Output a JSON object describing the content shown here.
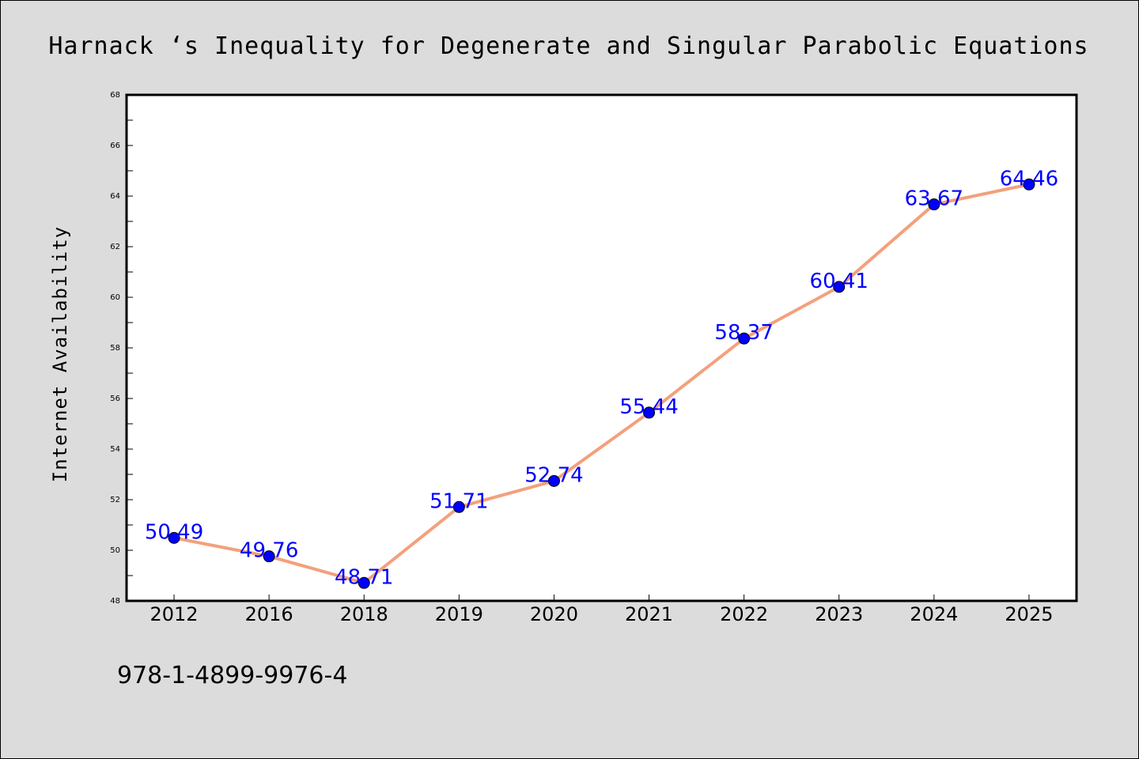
{
  "chart_data": {
    "type": "line",
    "title": "Harnack ‘s Inequality for Degenerate and Singular Parabolic Equations",
    "xlabel": "",
    "ylabel": "Internet Availability",
    "categories": [
      "2012",
      "2016",
      "2018",
      "2019",
      "2020",
      "2021",
      "2022",
      "2023",
      "2024",
      "2025"
    ],
    "values": [
      50.49,
      49.76,
      48.71,
      51.71,
      52.74,
      55.44,
      58.37,
      60.41,
      63.67,
      64.46
    ],
    "data_labels": [
      "50.49",
      "49.76",
      "48.71",
      "51.71",
      "52.74",
      "55.44",
      "58.37",
      "60.41",
      "63.67",
      "64.46"
    ],
    "ylim": [
      48,
      68
    ],
    "yticks": [
      "48",
      "50",
      "52",
      "54",
      "56",
      "58",
      "60",
      "62",
      "64",
      "66",
      "68"
    ],
    "grid": false,
    "legend": "none",
    "line_color": "#f4a07c",
    "marker_color": "#0000ff",
    "label_color": "#0000ff"
  },
  "footer": {
    "isbn": "978-1-4899-9976-4"
  }
}
